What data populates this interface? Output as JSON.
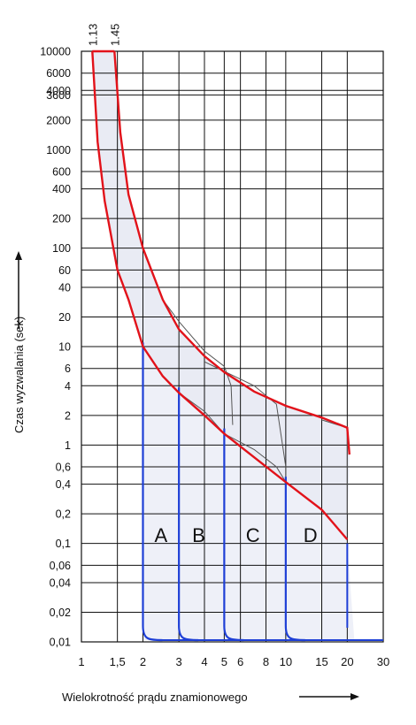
{
  "chart_data": {
    "type": "line",
    "xlabel": "Wielokrotność prądu znamionowego",
    "ylabel": "Czas wyzwalania (sek)",
    "x_scale": "log",
    "y_scale": "log",
    "xlim": [
      1,
      30
    ],
    "ylim": [
      0.01,
      10000
    ],
    "grid": true,
    "x_ticks": [
      {
        "v": 1,
        "label": "1"
      },
      {
        "v": 1.5,
        "label": "1,5"
      },
      {
        "v": 2,
        "label": "2"
      },
      {
        "v": 3,
        "label": "3"
      },
      {
        "v": 4,
        "label": "4"
      },
      {
        "v": 5,
        "label": "5"
      },
      {
        "v": 6,
        "label": "6"
      },
      {
        "v": 8,
        "label": "8"
      },
      {
        "v": 10,
        "label": "10"
      },
      {
        "v": 15,
        "label": "15"
      },
      {
        "v": 20,
        "label": "20"
      },
      {
        "v": 30,
        "label": "30"
      }
    ],
    "y_ticks": [
      {
        "v": 10000,
        "label": "10000"
      },
      {
        "v": 6000,
        "label": "6000"
      },
      {
        "v": 4000,
        "label": "4000"
      },
      {
        "v": 3600,
        "label": "3600"
      },
      {
        "v": 2000,
        "label": "2000"
      },
      {
        "v": 1000,
        "label": "1000"
      },
      {
        "v": 600,
        "label": "600"
      },
      {
        "v": 400,
        "label": "400"
      },
      {
        "v": 200,
        "label": "200"
      },
      {
        "v": 100,
        "label": "100"
      },
      {
        "v": 60,
        "label": "60"
      },
      {
        "v": 40,
        "label": "40"
      },
      {
        "v": 20,
        "label": "20"
      },
      {
        "v": 10,
        "label": "10"
      },
      {
        "v": 6,
        "label": "6"
      },
      {
        "v": 4,
        "label": "4"
      },
      {
        "v": 2,
        "label": "2"
      },
      {
        "v": 1,
        "label": "1"
      },
      {
        "v": 0.6,
        "label": "0,6"
      },
      {
        "v": 0.4,
        "label": "0,4"
      },
      {
        "v": 0.2,
        "label": "0,2"
      },
      {
        "v": 0.1,
        "label": "0,1"
      },
      {
        "v": 0.06,
        "label": "0,06"
      },
      {
        "v": 0.04,
        "label": "0,04"
      },
      {
        "v": 0.02,
        "label": "0,02"
      },
      {
        "v": 0.01,
        "label": "0,01"
      }
    ],
    "top_markers": [
      {
        "v": 1.13,
        "label": "1.13"
      },
      {
        "v": 1.45,
        "label": "1.45"
      }
    ],
    "thermal_band": {
      "upper": [
        [
          1.45,
          10000
        ],
        [
          1.55,
          1500
        ],
        [
          1.7,
          350
        ],
        [
          2,
          100
        ],
        [
          2.5,
          30
        ],
        [
          3,
          15
        ],
        [
          4,
          8
        ],
        [
          5,
          5.5
        ],
        [
          7,
          3.5
        ],
        [
          10,
          2.5
        ],
        [
          15,
          1.9
        ],
        [
          20,
          1.5
        ],
        [
          20.5,
          0.8
        ]
      ],
      "lower": [
        [
          1.13,
          10000
        ],
        [
          1.2,
          1200
        ],
        [
          1.3,
          300
        ],
        [
          1.5,
          60
        ],
        [
          1.7,
          30
        ],
        [
          2,
          10
        ],
        [
          2.5,
          5
        ],
        [
          3,
          3.4
        ],
        [
          4,
          2
        ],
        [
          5,
          1.3
        ],
        [
          7,
          0.75
        ],
        [
          10,
          0.42
        ],
        [
          15,
          0.22
        ],
        [
          20,
          0.11
        ]
      ]
    },
    "curve_labels": [
      {
        "name": "A",
        "x": 2.45,
        "y": 0.12
      },
      {
        "name": "B",
        "x": 3.75,
        "y": 0.12
      },
      {
        "name": "C",
        "x": 6.9,
        "y": 0.12
      },
      {
        "name": "D",
        "x": 13.2,
        "y": 0.12
      }
    ],
    "series": [
      {
        "name": "A",
        "magnetic_min": 2,
        "magnetic_max": 3
      },
      {
        "name": "B",
        "magnetic_min": 3,
        "magnetic_max": 5
      },
      {
        "name": "C",
        "magnetic_min": 5,
        "magnetic_max": 10
      },
      {
        "name": "D",
        "magnetic_min": 10,
        "magnetic_max": 20
      }
    ],
    "colors": {
      "thermal": "#e2121a",
      "magnetic": "#1e3fd6",
      "fill": "#eef0f8",
      "grid": "#111111"
    }
  }
}
